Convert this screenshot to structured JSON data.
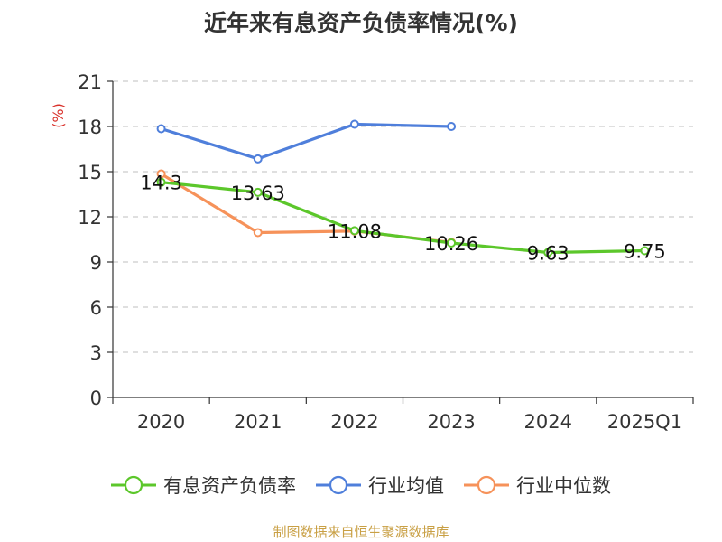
{
  "title": "近年来有息资产负债率情况(%)",
  "source_note": "制图数据来自恒生聚源数据库",
  "chart_data": {
    "type": "line",
    "title": "近年来有息资产负债率情况(%)",
    "ylabel": "(%)",
    "xlabel": "",
    "categories": [
      "2020",
      "2021",
      "2022",
      "2023",
      "2024",
      "2025Q1"
    ],
    "ylim": [
      0,
      21
    ],
    "yticks": [
      0,
      3,
      6,
      9,
      12,
      15,
      18,
      21
    ],
    "grid": true,
    "legend": "bottom",
    "series": [
      {
        "name": "有息资产负债率",
        "color": "#5cc72b",
        "values": [
          14.3,
          13.63,
          11.08,
          10.26,
          9.63,
          9.75
        ],
        "labels": [
          "14.3",
          "13.63",
          "11.08",
          "10.26",
          "9.63",
          "9.75"
        ],
        "show_labels": true
      },
      {
        "name": "行业均值",
        "color": "#4f7fdb",
        "values": [
          17.85,
          15.85,
          18.15,
          18.0,
          null,
          null
        ],
        "show_labels": false
      },
      {
        "name": "行业中位数",
        "color": "#f6925a",
        "values": [
          14.85,
          10.95,
          11.05,
          10.3,
          null,
          null
        ],
        "show_labels": false
      }
    ]
  }
}
